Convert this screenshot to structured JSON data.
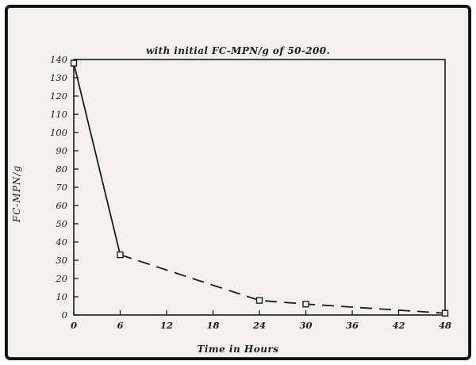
{
  "chart_data": {
    "type": "line",
    "title": "with initial FC-MPN/g of 50-200.",
    "xlabel": "Time in Hours",
    "ylabel": "FC-MPN/g",
    "x": [
      0,
      6,
      24,
      30,
      48
    ],
    "y": [
      138,
      33,
      8,
      6,
      1
    ],
    "xlim": [
      0,
      48
    ],
    "ylim": [
      0,
      140
    ],
    "x_ticks": [
      0,
      6,
      12,
      18,
      24,
      30,
      36,
      42,
      48
    ],
    "x_tick_labels": [
      "0",
      "6",
      "12",
      "18",
      "24",
      "30",
      "36",
      "42",
      "48"
    ],
    "y_ticks": [
      0,
      10,
      20,
      30,
      40,
      50,
      60,
      70,
      80,
      90,
      100,
      110,
      120,
      130,
      140
    ],
    "y_tick_labels": [
      "0",
      "10",
      "20",
      "30",
      "40",
      "50",
      "60",
      "70",
      "80",
      "90",
      "100",
      "110",
      "120",
      "130",
      "140"
    ],
    "grid": false,
    "legend": "none",
    "line_color": "#1c1c1c",
    "marker": "open-square",
    "style_note": "solid segment from x=0 to x=6, long-dashed from x=6 to x=48"
  }
}
